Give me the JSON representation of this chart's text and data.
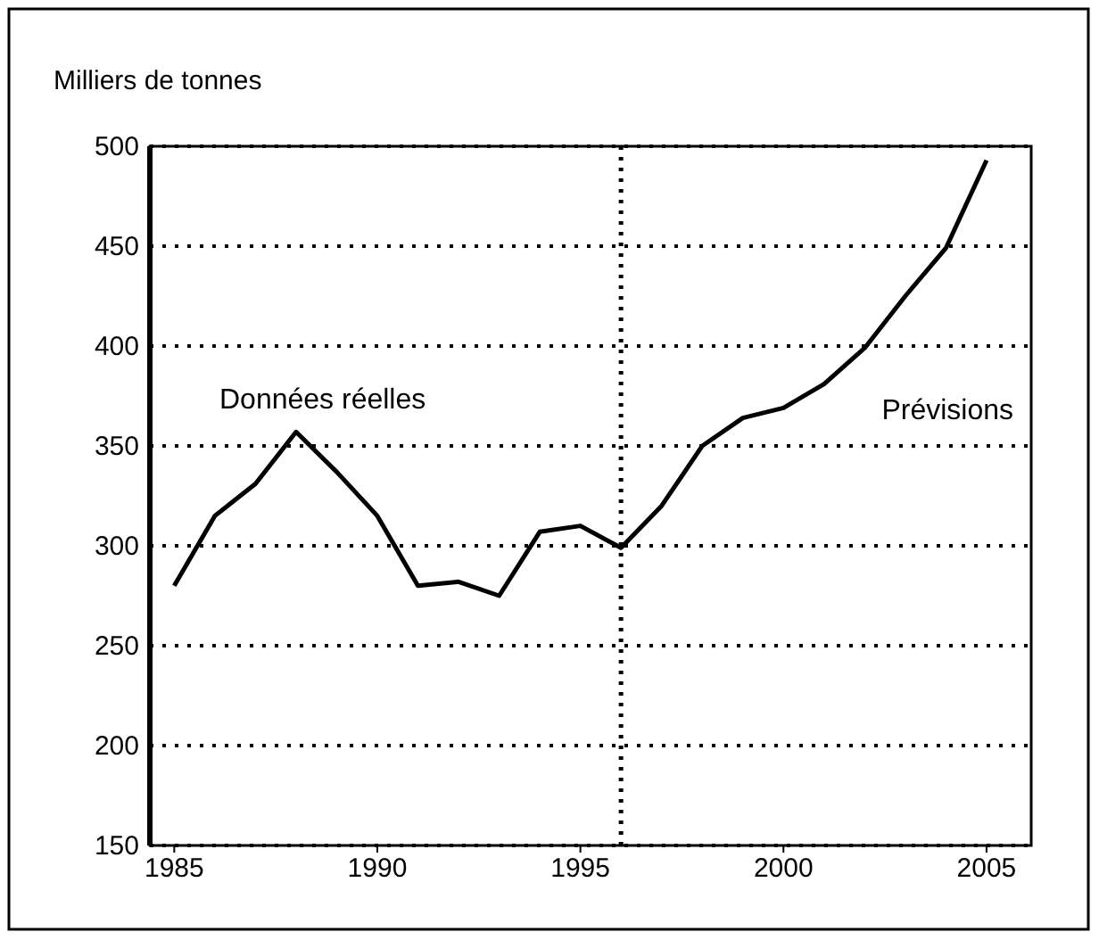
{
  "chart_data": {
    "type": "line",
    "ylabel": "Milliers de tonnes",
    "x": [
      1985,
      1986,
      1987,
      1988,
      1989,
      1990,
      1991,
      1992,
      1993,
      1994,
      1995,
      1996,
      1997,
      1998,
      1999,
      2000,
      2001,
      2002,
      2003,
      2004,
      2005
    ],
    "series": [
      {
        "color": "#000000",
        "values": [
          280,
          315,
          331,
          357,
          337,
          315,
          280,
          282,
          275,
          307,
          310,
          299,
          320,
          350,
          364,
          369,
          381,
          399,
          425,
          449,
          493
        ]
      }
    ],
    "xlim": [
      1984.4,
      2006.1
    ],
    "xticks": [
      1985,
      1990,
      1995,
      2000,
      2005
    ],
    "ylim": [
      150,
      500
    ],
    "yticks": [
      150,
      200,
      250,
      300,
      350,
      400,
      450,
      500
    ],
    "grid": "y",
    "line_style": "solid",
    "ref_lines": [
      {
        "axis": "x",
        "value": 1996,
        "line_style": "dotted",
        "color": "#000000"
      }
    ],
    "annotations": [
      "Données réelles",
      "Prévisions"
    ]
  }
}
